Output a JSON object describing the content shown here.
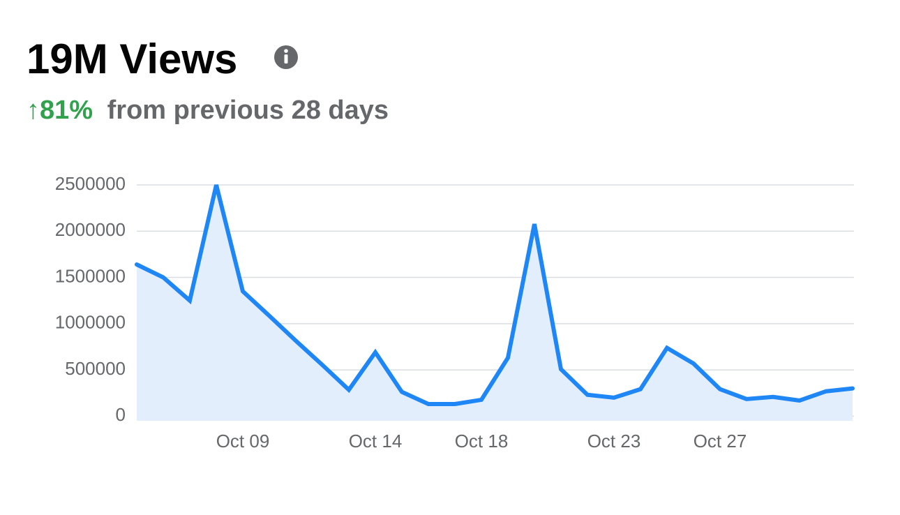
{
  "header": {
    "title": "19M Views",
    "change": "↑81%",
    "comparison": "from previous 28 days"
  },
  "chart_data": {
    "type": "area",
    "categories": [
      null,
      null,
      null,
      null,
      "Oct 09",
      null,
      null,
      null,
      null,
      "Oct 14",
      null,
      null,
      null,
      "Oct 18",
      null,
      null,
      null,
      null,
      "Oct 23",
      null,
      null,
      null,
      "Oct 27",
      null,
      null,
      null,
      null,
      null
    ],
    "values": [
      1640000,
      1500000,
      1250000,
      2500000,
      1350000,
      1085000,
      815000,
      554000,
      285000,
      690000,
      262000,
      131000,
      131000,
      177000,
      631000,
      2077000,
      508000,
      231000,
      200000,
      292000,
      738000,
      569000,
      292000,
      185000,
      208000,
      169000,
      269000,
      300000
    ],
    "color": "#1f87f5",
    "fill": "#e2eefc",
    "ylim": [
      -50000,
      2500000
    ],
    "yticks": [
      0,
      500000,
      1000000,
      1500000,
      2000000,
      2500000
    ],
    "grid": true
  }
}
